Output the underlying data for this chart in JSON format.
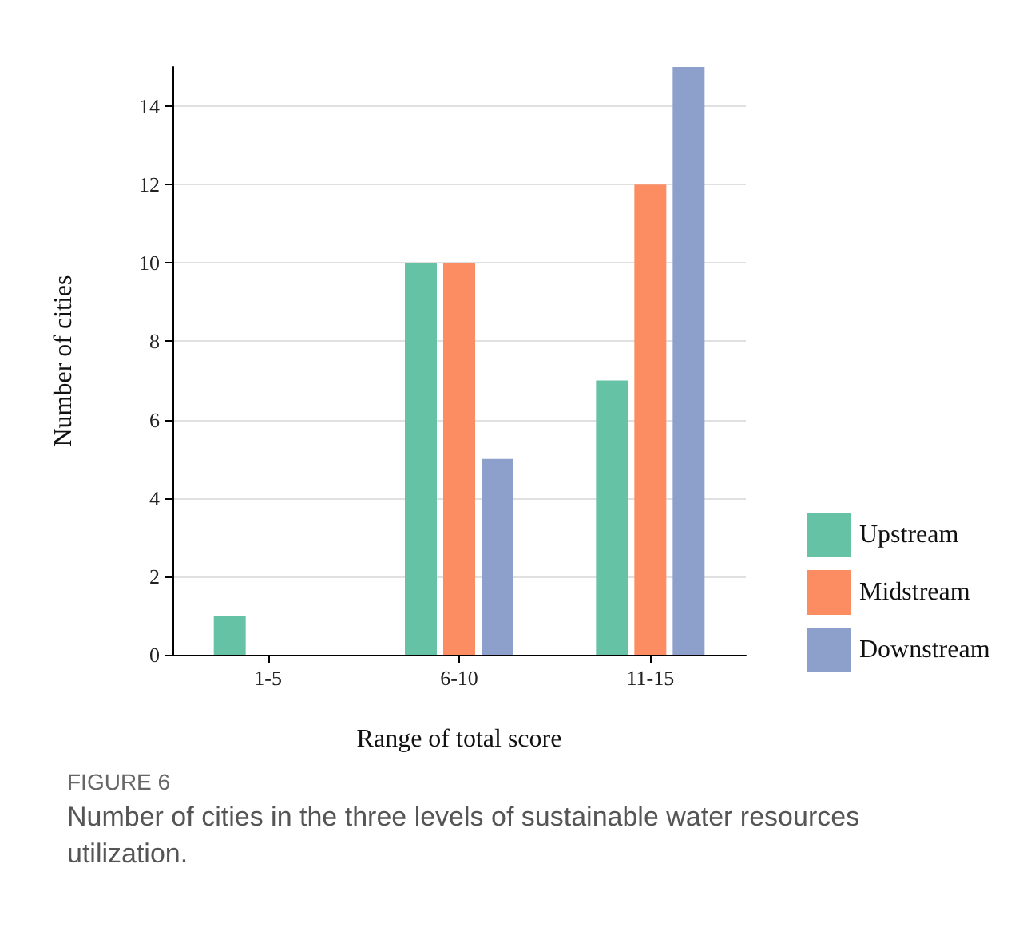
{
  "chart_data": {
    "type": "bar",
    "xlabel": "Range of total score",
    "ylabel": "Number of cities",
    "categories": [
      "1-5",
      "6-10",
      "11-15"
    ],
    "series": [
      {
        "name": "Upstream",
        "color": "#66c2a5",
        "values": [
          1,
          10,
          7
        ]
      },
      {
        "name": "Midstream",
        "color": "#fc8d62",
        "values": [
          0,
          10,
          12
        ]
      },
      {
        "name": "Downstream",
        "color": "#8da0cb",
        "values": [
          0,
          5,
          15
        ]
      }
    ],
    "ylim": [
      0,
      15
    ],
    "yticks": [
      0,
      2,
      4,
      6,
      8,
      10,
      12,
      14
    ],
    "grid": "y",
    "legend": "right",
    "annotations": [
      "FIGURE 6",
      "Number of cities in the three levels of sustainable water resources utilization."
    ]
  }
}
